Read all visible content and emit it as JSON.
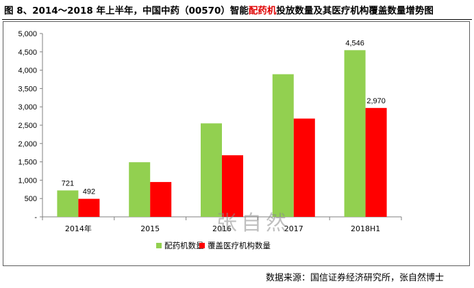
{
  "title": {
    "prefix": "图 8、2014～2018 年上半年，中国中药（00570）智能",
    "highlight": "配药机",
    "suffix": "投放数量及其医疗机构覆盖数量增势图"
  },
  "source": "数据来源：国信证券经济研究所，张自然博士",
  "watermark": "张自然",
  "colors": {
    "series1": "#92d050",
    "series2": "#ff0000",
    "highlight": "#e00000"
  },
  "chart_data": {
    "type": "bar",
    "categories": [
      "2014年",
      "2015",
      "2016",
      "2017",
      "2018H1"
    ],
    "series": [
      {
        "name": "配药机数量",
        "values": [
          721,
          1490,
          2550,
          3890,
          4546
        ],
        "labels": [
          "721",
          "",
          "",
          "",
          "4,546"
        ]
      },
      {
        "name": "覆盖医疗机构数量",
        "values": [
          492,
          950,
          1680,
          2680,
          2970
        ],
        "labels": [
          "492",
          "",
          "",
          "",
          "2,970"
        ]
      }
    ],
    "ylim": [
      0,
      5000
    ],
    "yticks": [
      0,
      500,
      1000,
      1500,
      2000,
      2500,
      3000,
      3500,
      4000,
      4500,
      5000
    ],
    "ytick_labels": [
      "-",
      "500",
      "1,000",
      "1,500",
      "2,000",
      "2,500",
      "3,000",
      "3,500",
      "4,000",
      "4,500",
      "5,000"
    ],
    "legend_position": "bottom-center",
    "grid": false
  }
}
